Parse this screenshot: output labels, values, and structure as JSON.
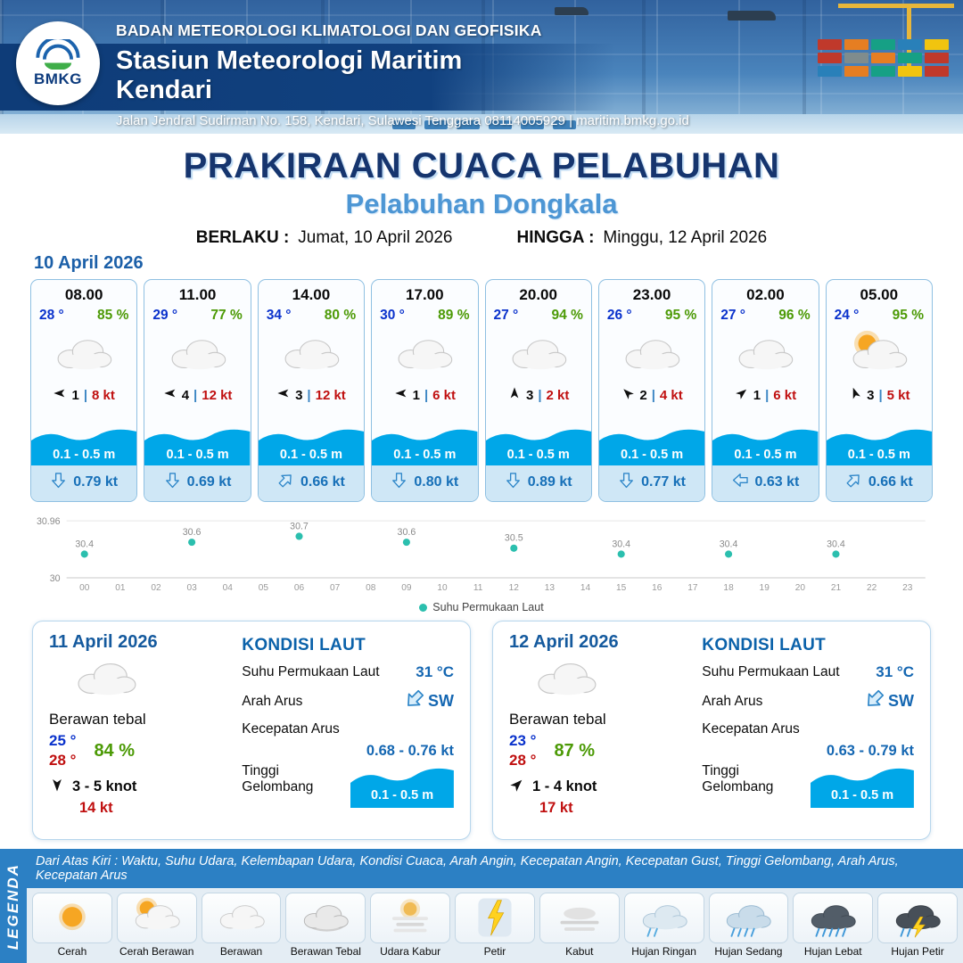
{
  "header": {
    "logo_text": "BMKG",
    "org": "BADAN METEOROLOGI KLIMATOLOGI DAN GEOFISIKA",
    "station": "Stasiun Meteorologi Maritim Kendari",
    "address": "Jalan Jendral Sudirman No. 158, Kendari, Sulawesi Tenggara  08114005929 | maritim.bmkg.go.id"
  },
  "title": {
    "main": "PRAKIRAAN CUACA PELABUHAN",
    "port": "Pelabuhan Dongkala",
    "valid_from_label": "BERLAKU :",
    "valid_from": "Jumat, 10 April 2026",
    "valid_to_label": "HINGGA :",
    "valid_to": "Minggu, 12 April 2026"
  },
  "hourly_section": {
    "date": "10 April 2026",
    "cards": [
      {
        "time": "08.00",
        "temp": "28 °",
        "rh": "85 %",
        "icon": "cloud",
        "wind_dir": 270,
        "wind_num": "1",
        "wind_speed": "8 kt",
        "wave": "0.1 - 0.5 m",
        "current_dir": 180,
        "current_speed": "0.79 kt"
      },
      {
        "time": "11.00",
        "temp": "29 °",
        "rh": "77 %",
        "icon": "cloud",
        "wind_dir": 270,
        "wind_num": "4",
        "wind_speed": "12 kt",
        "wave": "0.1 - 0.5 m",
        "current_dir": 180,
        "current_speed": "0.69 kt"
      },
      {
        "time": "14.00",
        "temp": "34 °",
        "rh": "80 %",
        "icon": "cloud",
        "wind_dir": 270,
        "wind_num": "3",
        "wind_speed": "12 kt",
        "wave": "0.1 - 0.5 m",
        "current_dir": 45,
        "current_speed": "0.66 kt"
      },
      {
        "time": "17.00",
        "temp": "30 °",
        "rh": "89 %",
        "icon": "cloud",
        "wind_dir": 270,
        "wind_num": "1",
        "wind_speed": "6 kt",
        "wave": "0.1 - 0.5 m",
        "current_dir": 180,
        "current_speed": "0.80 kt"
      },
      {
        "time": "20.00",
        "temp": "27 °",
        "rh": "94 %",
        "icon": "cloud",
        "wind_dir": 0,
        "wind_num": "3",
        "wind_speed": "2 kt",
        "wave": "0.1 - 0.5 m",
        "current_dir": 180,
        "current_speed": "0.89 kt"
      },
      {
        "time": "23.00",
        "temp": "26 °",
        "rh": "95 %",
        "icon": "cloud",
        "wind_dir": 315,
        "wind_num": "2",
        "wind_speed": "4 kt",
        "wave": "0.1 - 0.5 m",
        "current_dir": 180,
        "current_speed": "0.77 kt"
      },
      {
        "time": "02.00",
        "temp": "27 °",
        "rh": "96 %",
        "icon": "cloud",
        "wind_dir": 50,
        "wind_num": "1",
        "wind_speed": "6 kt",
        "wave": "0.1 - 0.5 m",
        "current_dir": 270,
        "current_speed": "0.63 kt"
      },
      {
        "time": "05.00",
        "temp": "24 °",
        "rh": "95 %",
        "icon": "sun-cloud",
        "wind_dir": 340,
        "wind_num": "3",
        "wind_speed": "5 kt",
        "wave": "0.1 - 0.5 m",
        "current_dir": 45,
        "current_speed": "0.66 kt"
      }
    ]
  },
  "chart_data": {
    "type": "scatter",
    "title": "",
    "xlabel": "",
    "ylabel": "",
    "x_ticks": [
      "00",
      "01",
      "02",
      "03",
      "04",
      "05",
      "06",
      "07",
      "08",
      "09",
      "10",
      "11",
      "12",
      "13",
      "14",
      "15",
      "16",
      "17",
      "18",
      "19",
      "20",
      "21",
      "22",
      "23"
    ],
    "ylim": [
      30,
      30.96
    ],
    "ymin_label": "30",
    "ymax_label": "30.96",
    "grid": "minimal",
    "legend": "Suhu Permukaan Laut",
    "legend_position": "bottom",
    "point_color": "#2bbfae",
    "series": [
      {
        "name": "Suhu Permukaan Laut",
        "x": [
          0,
          3,
          6,
          9,
          12,
          15,
          18,
          21
        ],
        "y": [
          30.4,
          30.6,
          30.7,
          30.6,
          30.5,
          30.4,
          30.4,
          30.4
        ]
      }
    ]
  },
  "daily": [
    {
      "date": "11 April 2026",
      "icon": "cloud",
      "condition": "Berawan tebal",
      "temp_min": "25 °",
      "temp_max": "28 °",
      "rh": "84 %",
      "wind_dir": 180,
      "wind_range": "3  - 5 knot",
      "gust": "14 kt",
      "sea": {
        "heading": "KONDISI LAUT",
        "sst_label": "Suhu Permukaan Laut",
        "sst": "31 °C",
        "dir_label": "Arah Arus",
        "dir": "SW",
        "dir_bearing": 225,
        "speed_label": "Kecepatan Arus",
        "speed": "0.68 - 0.76 kt",
        "wave_label": "Tinggi Gelombang",
        "wave": "0.1 - 0.5 m"
      }
    },
    {
      "date": "12 April 2026",
      "icon": "cloud",
      "condition": "Berawan tebal",
      "temp_min": "23 °",
      "temp_max": "28 °",
      "rh": "87 %",
      "wind_dir": 45,
      "wind_range": "1  - 4 knot",
      "gust": "17 kt",
      "sea": {
        "heading": "KONDISI LAUT",
        "sst_label": "Suhu Permukaan Laut",
        "sst": "31 °C",
        "dir_label": "Arah Arus",
        "dir": "SW",
        "dir_bearing": 225,
        "speed_label": "Kecepatan Arus",
        "speed": "0.63  - 0.79 kt",
        "wave_label": "Tinggi Gelombang",
        "wave": "0.1 - 0.5 m"
      }
    }
  ],
  "legend": {
    "vertical_label": "LEGENDA",
    "note": "Dari Atas Kiri : Waktu, Suhu Udara, Kelembapan Udara, Kondisi Cuaca, Arah Angin, Kecepatan Angin, Kecepatan Gust, Tinggi Gelombang, Arah Arus, Kecepatan Arus",
    "items": [
      {
        "label": "Cerah",
        "icon": "sun"
      },
      {
        "label": "Cerah Berawan",
        "icon": "sun-cloud"
      },
      {
        "label": "Berawan",
        "icon": "cloud"
      },
      {
        "label": "Berawan Tebal",
        "icon": "cloud-thick"
      },
      {
        "label": "Udara Kabur",
        "icon": "haze"
      },
      {
        "label": "Petir",
        "icon": "lightning"
      },
      {
        "label": "Kabut",
        "icon": "fog"
      },
      {
        "label": "Hujan Ringan",
        "icon": "rain-light"
      },
      {
        "label": "Hujan Sedang",
        "icon": "rain-moderate"
      },
      {
        "label": "Hujan Lebat",
        "icon": "rain-heavy"
      },
      {
        "label": "Hujan Petir",
        "icon": "thunderstorm"
      }
    ]
  },
  "colors": {
    "title_navy": "#16356e",
    "port_blue": "#4d96d4",
    "date_blue": "#1b5fa8",
    "temp_blue": "#0a32cc",
    "humidity_green": "#4c9a06",
    "wind_red": "#c01010",
    "wave_blue": "#00a7e8",
    "current_blue": "#1770b8",
    "card_border": "#8fc0e2",
    "footer_bg": "#cfe7f6",
    "legend_bar_blue": "#2c80c4",
    "chart_point_teal": "#2bbfae"
  }
}
